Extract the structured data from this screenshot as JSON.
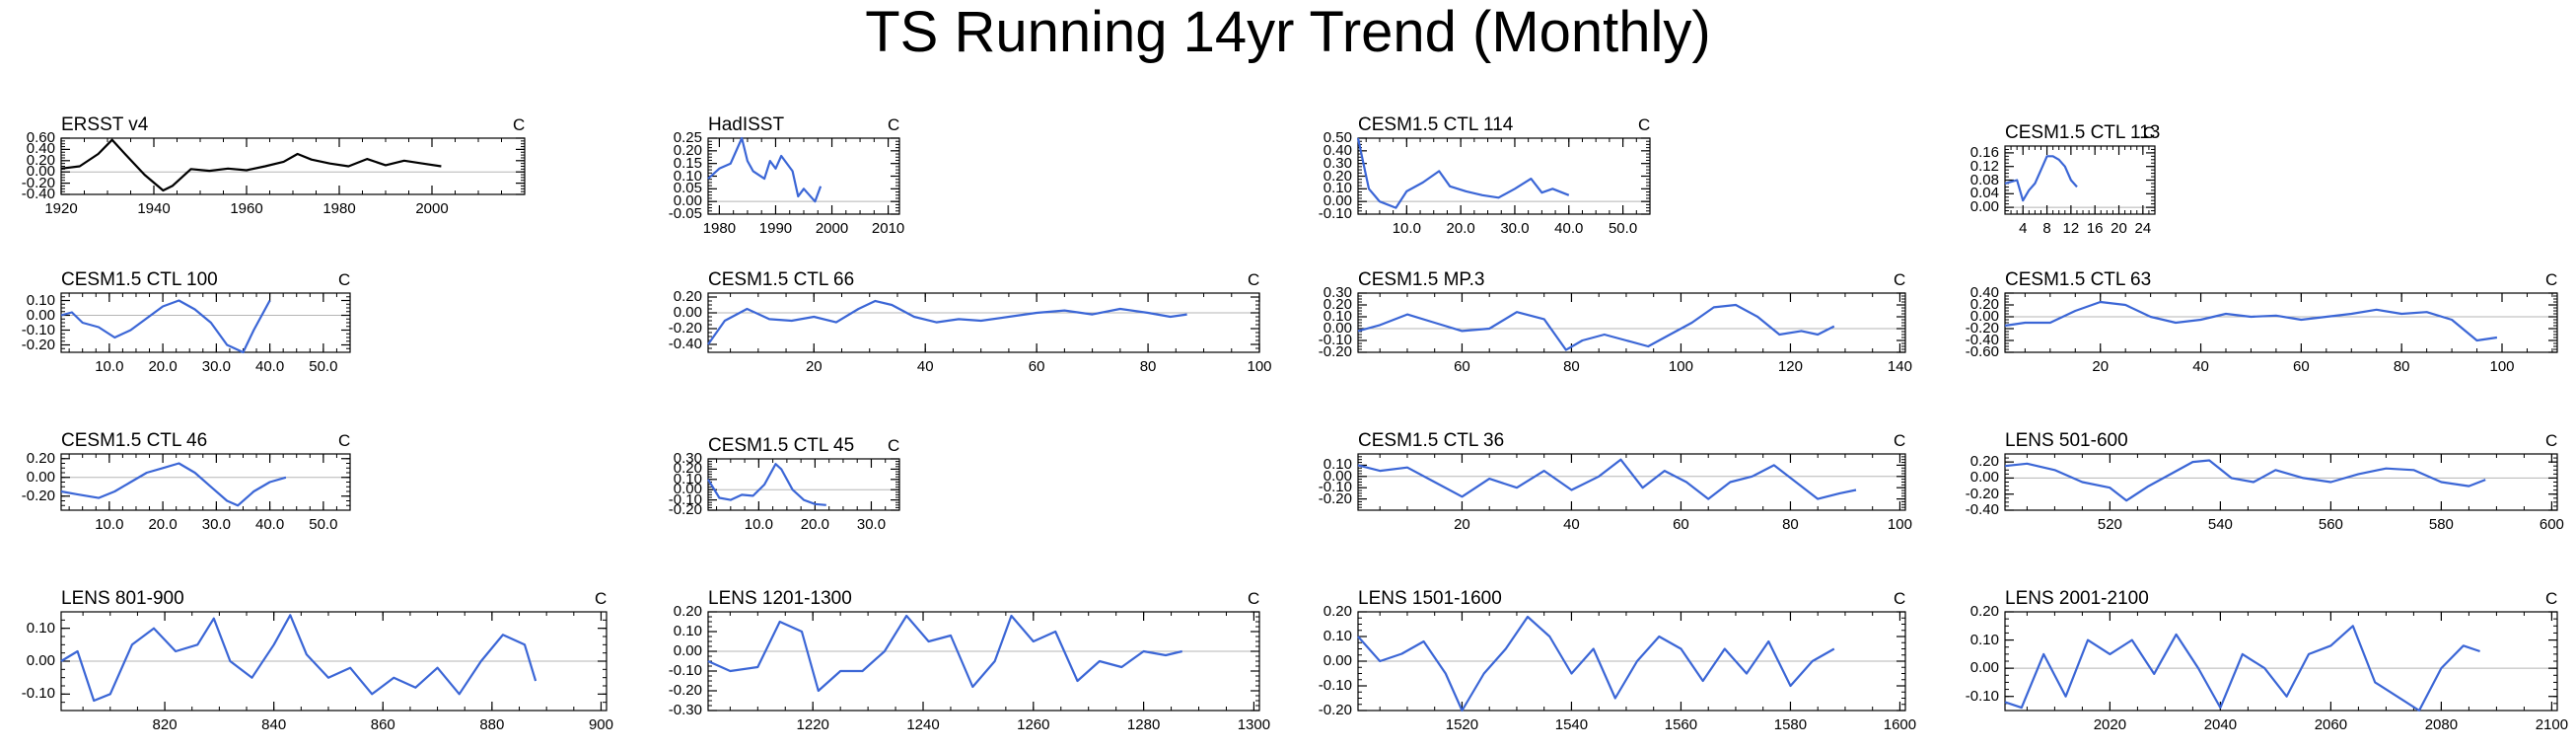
{
  "title": "TS Running 14yr Trend (Monthly)",
  "colors": {
    "obs_line": "#000000",
    "model_line": "#3b66d6",
    "axis": "#000000",
    "zero_line": "#b5b5b5"
  },
  "chart_data": [
    {
      "type": "line",
      "title": "ERSST v4",
      "unit": "C",
      "color": "#000000",
      "x_range": [
        1920,
        2020
      ],
      "ylim": [
        -0.4,
        0.6
      ],
      "xticks": [
        1920,
        1940,
        1960,
        1980,
        2000
      ],
      "xtick_labels": [
        "1920",
        "1940",
        "1960",
        "1980",
        "2000"
      ],
      "yticks": [
        -0.4,
        -0.2,
        0.0,
        0.2,
        0.4,
        0.6
      ],
      "ytick_labels": [
        "-0.40",
        "-0.20",
        "0.00",
        "0.20",
        "0.40",
        "0.60"
      ],
      "x": [
        1920,
        1924,
        1928,
        1931,
        1934,
        1938,
        1942,
        1944,
        1948,
        1952,
        1956,
        1960,
        1964,
        1968,
        1971,
        1974,
        1978,
        1982,
        1986,
        1990,
        1994,
        1998,
        2002
      ],
      "y": [
        0.06,
        0.1,
        0.32,
        0.57,
        0.3,
        -0.05,
        -0.33,
        -0.25,
        0.05,
        0.02,
        0.06,
        0.03,
        0.1,
        0.18,
        0.32,
        0.22,
        0.15,
        0.1,
        0.23,
        0.12,
        0.2,
        0.15,
        0.1
      ]
    },
    {
      "type": "line",
      "title": "HadISST",
      "unit": "C",
      "color": "#3b66d6",
      "x_range": [
        1978,
        2012
      ],
      "ylim": [
        -0.05,
        0.25
      ],
      "xticks": [
        1980,
        1990,
        2000,
        2010
      ],
      "xtick_labels": [
        "1980",
        "1990",
        "2000",
        "2010"
      ],
      "yticks": [
        -0.05,
        0.0,
        0.05,
        0.1,
        0.15,
        0.2,
        0.25
      ],
      "ytick_labels": [
        "-0.05",
        "0.00",
        "0.05",
        "0.10",
        "0.15",
        "0.20",
        "0.25"
      ],
      "x": [
        1978,
        1980,
        1982,
        1984,
        1985,
        1986,
        1988,
        1989,
        1990,
        1991,
        1993,
        1994,
        1995,
        1997,
        1998
      ],
      "y": [
        0.09,
        0.13,
        0.15,
        0.25,
        0.16,
        0.12,
        0.09,
        0.16,
        0.13,
        0.18,
        0.12,
        0.02,
        0.05,
        0.0,
        0.06
      ]
    },
    {
      "type": "line",
      "title": "CESM1.5 CTL 114",
      "unit": "C",
      "color": "#3b66d6",
      "x_range": [
        1,
        55
      ],
      "ylim": [
        -0.1,
        0.5
      ],
      "xticks": [
        10,
        20,
        30,
        40,
        50
      ],
      "xtick_labels": [
        "10.0",
        "20.0",
        "30.0",
        "40.0",
        "50.0"
      ],
      "yticks": [
        -0.1,
        0.0,
        0.1,
        0.2,
        0.3,
        0.4,
        0.5
      ],
      "ytick_labels": [
        "-0.10",
        "0.00",
        "0.10",
        "0.20",
        "0.30",
        "0.40",
        "0.50"
      ],
      "x": [
        1,
        3,
        5,
        8,
        10,
        13,
        16,
        18,
        21,
        24,
        27,
        30,
        33,
        35,
        37,
        40
      ],
      "y": [
        0.5,
        0.1,
        0.0,
        -0.05,
        0.08,
        0.15,
        0.24,
        0.12,
        0.08,
        0.05,
        0.03,
        0.1,
        0.18,
        0.07,
        0.1,
        0.05
      ]
    },
    {
      "type": "line",
      "title": "CESM1.5 CTL 113",
      "unit": "C",
      "color": "#3b66d6",
      "x_range": [
        1,
        26
      ],
      "ylim": [
        -0.02,
        0.18
      ],
      "xticks": [
        4,
        8,
        12,
        16,
        20,
        24
      ],
      "xtick_labels": [
        "4",
        "8",
        "12",
        "16",
        "20",
        "24"
      ],
      "yticks": [
        0.0,
        0.04,
        0.08,
        0.12,
        0.16
      ],
      "ytick_labels": [
        "0.00",
        "0.04",
        "0.08",
        "0.12",
        "0.16"
      ],
      "x": [
        1,
        3,
        4,
        5,
        6,
        7,
        8,
        9,
        10,
        11,
        12,
        13
      ],
      "y": [
        0.07,
        0.08,
        0.02,
        0.05,
        0.07,
        0.11,
        0.15,
        0.15,
        0.14,
        0.12,
        0.08,
        0.06
      ]
    },
    {
      "type": "line",
      "title": "CESM1.5 CTL 100",
      "unit": "C",
      "color": "#3b66d6",
      "x_range": [
        1,
        55
      ],
      "ylim": [
        -0.25,
        0.15
      ],
      "xticks": [
        10,
        20,
        30,
        40,
        50
      ],
      "xtick_labels": [
        "10.0",
        "20.0",
        "30.0",
        "40.0",
        "50.0"
      ],
      "yticks": [
        -0.2,
        -0.1,
        0.0,
        0.1
      ],
      "ytick_labels": [
        "-0.20",
        "-0.10",
        "0.00",
        "0.10"
      ],
      "x": [
        1,
        3,
        5,
        8,
        11,
        14,
        17,
        20,
        23,
        26,
        29,
        32,
        35,
        37,
        40
      ],
      "y": [
        0.0,
        0.02,
        -0.05,
        -0.08,
        -0.15,
        -0.1,
        -0.02,
        0.06,
        0.1,
        0.04,
        -0.05,
        -0.2,
        -0.25,
        -0.1,
        0.1
      ]
    },
    {
      "type": "line",
      "title": "CESM1.5 CTL 66",
      "unit": "C",
      "color": "#3b66d6",
      "x_range": [
        1,
        100
      ],
      "ylim": [
        -0.5,
        0.25
      ],
      "xticks": [
        20,
        40,
        60,
        80,
        100
      ],
      "xtick_labels": [
        "20",
        "40",
        "60",
        "80",
        "100"
      ],
      "yticks": [
        -0.4,
        -0.2,
        0.0,
        0.2
      ],
      "ytick_labels": [
        "-0.40",
        "-0.20",
        "0.00",
        "0.20"
      ],
      "x": [
        1,
        4,
        8,
        12,
        16,
        20,
        24,
        28,
        31,
        34,
        38,
        42,
        46,
        50,
        55,
        60,
        65,
        70,
        75,
        80,
        84,
        87
      ],
      "y": [
        -0.4,
        -0.1,
        0.05,
        -0.08,
        -0.1,
        -0.05,
        -0.12,
        0.05,
        0.15,
        0.1,
        -0.05,
        -0.12,
        -0.08,
        -0.1,
        -0.05,
        0.0,
        0.03,
        -0.02,
        0.05,
        0.0,
        -0.05,
        -0.02
      ]
    },
    {
      "type": "line",
      "title": "CESM1.5 MP.3",
      "unit": "C",
      "color": "#3b66d6",
      "x_range": [
        41,
        141
      ],
      "ylim": [
        -0.2,
        0.3
      ],
      "xticks": [
        60,
        80,
        100,
        120,
        140
      ],
      "xtick_labels": [
        "60",
        "80",
        "100",
        "120",
        "140"
      ],
      "yticks": [
        -0.2,
        -0.1,
        0.0,
        0.1,
        0.2,
        0.3
      ],
      "ytick_labels": [
        "-0.20",
        "-0.10",
        "0.00",
        "0.10",
        "0.20",
        "0.30"
      ],
      "x": [
        41,
        45,
        50,
        55,
        60,
        65,
        70,
        75,
        79,
        82,
        86,
        90,
        94,
        98,
        102,
        106,
        110,
        114,
        118,
        122,
        125,
        128
      ],
      "y": [
        -0.02,
        0.03,
        0.12,
        0.05,
        -0.02,
        0.0,
        0.14,
        0.08,
        -0.18,
        -0.1,
        -0.05,
        -0.1,
        -0.15,
        -0.05,
        0.05,
        0.18,
        0.2,
        0.1,
        -0.05,
        -0.02,
        -0.05,
        0.02
      ]
    },
    {
      "type": "line",
      "title": "CESM1.5 CTL 63",
      "unit": "C",
      "color": "#3b66d6",
      "x_range": [
        1,
        111
      ],
      "ylim": [
        -0.6,
        0.4
      ],
      "xticks": [
        20,
        40,
        60,
        80,
        100
      ],
      "xtick_labels": [
        "20",
        "40",
        "60",
        "80",
        "100"
      ],
      "yticks": [
        -0.6,
        -0.4,
        -0.2,
        0.0,
        0.2,
        0.4
      ],
      "ytick_labels": [
        "-0.60",
        "-0.40",
        "-0.20",
        "0.00",
        "0.20",
        "0.40"
      ],
      "x": [
        1,
        5,
        10,
        15,
        20,
        25,
        30,
        35,
        40,
        45,
        50,
        55,
        60,
        65,
        70,
        75,
        80,
        85,
        90,
        95,
        99
      ],
      "y": [
        -0.15,
        -0.1,
        -0.1,
        0.1,
        0.25,
        0.2,
        0.0,
        -0.1,
        -0.05,
        0.05,
        0.0,
        0.02,
        -0.05,
        0.0,
        0.05,
        0.12,
        0.05,
        0.08,
        -0.05,
        -0.4,
        -0.35
      ]
    },
    {
      "type": "line",
      "title": "CESM1.5 CTL 46",
      "unit": "C",
      "color": "#3b66d6",
      "x_range": [
        1,
        55
      ],
      "ylim": [
        -0.35,
        0.25
      ],
      "xticks": [
        10,
        20,
        30,
        40,
        50
      ],
      "xtick_labels": [
        "10.0",
        "20.0",
        "30.0",
        "40.0",
        "50.0"
      ],
      "yticks": [
        -0.2,
        0.0,
        0.2
      ],
      "ytick_labels": [
        "-0.20",
        "0.00",
        "0.20"
      ],
      "x": [
        1,
        4,
        8,
        11,
        14,
        17,
        20,
        23,
        26,
        29,
        32,
        34,
        37,
        40,
        43
      ],
      "y": [
        -0.15,
        -0.18,
        -0.22,
        -0.15,
        -0.05,
        0.05,
        0.1,
        0.15,
        0.05,
        -0.1,
        -0.25,
        -0.3,
        -0.15,
        -0.05,
        0.0
      ]
    },
    {
      "type": "line",
      "title": "CESM1.5 CTL 45",
      "unit": "C",
      "color": "#3b66d6",
      "x_range": [
        1,
        35
      ],
      "ylim": [
        -0.2,
        0.3
      ],
      "xticks": [
        10,
        20,
        30
      ],
      "xtick_labels": [
        "10.0",
        "20.0",
        "30.0"
      ],
      "yticks": [
        -0.2,
        -0.1,
        0.0,
        0.1,
        0.2,
        0.3
      ],
      "ytick_labels": [
        "-0.20",
        "-0.10",
        "0.00",
        "0.10",
        "0.20",
        "0.30"
      ],
      "x": [
        1,
        3,
        5,
        7,
        9,
        11,
        13,
        14,
        16,
        18,
        20,
        22
      ],
      "y": [
        0.1,
        -0.08,
        -0.1,
        -0.05,
        -0.06,
        0.05,
        0.25,
        0.2,
        0.0,
        -0.1,
        -0.14,
        -0.15
      ]
    },
    {
      "type": "line",
      "title": "CESM1.5 CTL 36",
      "unit": "C",
      "color": "#3b66d6",
      "x_range": [
        1,
        101
      ],
      "ylim": [
        -0.3,
        0.2
      ],
      "xticks": [
        20,
        40,
        60,
        80,
        100
      ],
      "xtick_labels": [
        "20",
        "40",
        "60",
        "80",
        "100"
      ],
      "yticks": [
        -0.2,
        -0.1,
        0.0,
        0.1
      ],
      "ytick_labels": [
        "-0.20",
        "-0.10",
        "0.00",
        "0.10"
      ],
      "x": [
        1,
        5,
        10,
        15,
        20,
        25,
        30,
        35,
        40,
        45,
        49,
        53,
        57,
        61,
        65,
        69,
        73,
        77,
        81,
        85,
        89,
        92
      ],
      "y": [
        0.1,
        0.05,
        0.08,
        -0.05,
        -0.18,
        -0.02,
        -0.1,
        0.05,
        -0.12,
        0.0,
        0.15,
        -0.1,
        0.05,
        -0.05,
        -0.2,
        -0.05,
        0.0,
        0.1,
        -0.05,
        -0.2,
        -0.15,
        -0.12
      ]
    },
    {
      "type": "line",
      "title": "LENS 501-600",
      "unit": "C",
      "color": "#3b66d6",
      "x_range": [
        501,
        601
      ],
      "ylim": [
        -0.4,
        0.3
      ],
      "xticks": [
        520,
        540,
        560,
        580,
        600
      ],
      "xtick_labels": [
        "520",
        "540",
        "560",
        "580",
        "600"
      ],
      "yticks": [
        -0.4,
        -0.2,
        0.0,
        0.2
      ],
      "ytick_labels": [
        "-0.40",
        "-0.20",
        "0.00",
        "0.20"
      ],
      "x": [
        501,
        505,
        510,
        515,
        520,
        523,
        527,
        531,
        535,
        538,
        542,
        546,
        550,
        555,
        560,
        565,
        570,
        575,
        580,
        585,
        588
      ],
      "y": [
        0.15,
        0.18,
        0.1,
        -0.05,
        -0.12,
        -0.28,
        -0.1,
        0.05,
        0.2,
        0.22,
        0.0,
        -0.05,
        0.1,
        0.0,
        -0.05,
        0.05,
        0.12,
        0.1,
        -0.05,
        -0.1,
        -0.02
      ]
    },
    {
      "type": "line",
      "title": "LENS 801-900",
      "unit": "C",
      "color": "#3b66d6",
      "x_range": [
        801,
        901
      ],
      "ylim": [
        -0.15,
        0.15
      ],
      "xticks": [
        820,
        840,
        860,
        880,
        900
      ],
      "xtick_labels": [
        "820",
        "840",
        "860",
        "880",
        "900"
      ],
      "yticks": [
        -0.1,
        0.0,
        0.1
      ],
      "ytick_labels": [
        "-0.10",
        "0.00",
        "0.10"
      ],
      "x": [
        801,
        804,
        807,
        810,
        814,
        818,
        822,
        826,
        829,
        832,
        836,
        840,
        843,
        846,
        850,
        854,
        858,
        862,
        866,
        870,
        874,
        878,
        882,
        886,
        888
      ],
      "y": [
        0.0,
        0.03,
        -0.12,
        -0.1,
        0.05,
        0.1,
        0.03,
        0.05,
        0.13,
        0.0,
        -0.05,
        0.05,
        0.14,
        0.02,
        -0.05,
        -0.02,
        -0.1,
        -0.05,
        -0.08,
        -0.02,
        -0.1,
        0.0,
        0.08,
        0.05,
        -0.06
      ]
    },
    {
      "type": "line",
      "title": "LENS 1201-1300",
      "unit": "C",
      "color": "#3b66d6",
      "x_range": [
        1201,
        1301
      ],
      "ylim": [
        -0.3,
        0.2
      ],
      "xticks": [
        1220,
        1240,
        1260,
        1280,
        1300
      ],
      "xtick_labels": [
        "1220",
        "1240",
        "1260",
        "1280",
        "1300"
      ],
      "yticks": [
        -0.3,
        -0.2,
        -0.1,
        0.0,
        0.1,
        0.2
      ],
      "ytick_labels": [
        "-0.30",
        "-0.20",
        "-0.10",
        "0.00",
        "0.10",
        "0.20"
      ],
      "x": [
        1201,
        1205,
        1210,
        1214,
        1218,
        1221,
        1225,
        1229,
        1233,
        1237,
        1241,
        1245,
        1249,
        1253,
        1256,
        1260,
        1264,
        1268,
        1272,
        1276,
        1280,
        1284,
        1287
      ],
      "y": [
        -0.05,
        -0.1,
        -0.08,
        0.15,
        0.1,
        -0.2,
        -0.1,
        -0.1,
        0.0,
        0.18,
        0.05,
        0.08,
        -0.18,
        -0.05,
        0.18,
        0.05,
        0.1,
        -0.15,
        -0.05,
        -0.08,
        0.0,
        -0.02,
        0.0
      ]
    },
    {
      "type": "line",
      "title": "LENS 1501-1600",
      "unit": "C",
      "color": "#3b66d6",
      "x_range": [
        1501,
        1601
      ],
      "ylim": [
        -0.2,
        0.2
      ],
      "xticks": [
        1520,
        1540,
        1560,
        1580,
        1600
      ],
      "xtick_labels": [
        "1520",
        "1540",
        "1560",
        "1580",
        "1600"
      ],
      "yticks": [
        -0.2,
        -0.1,
        0.0,
        0.1,
        0.2
      ],
      "ytick_labels": [
        "-0.20",
        "-0.10",
        "0.00",
        "0.10",
        "0.20"
      ],
      "x": [
        1501,
        1505,
        1509,
        1513,
        1517,
        1520,
        1524,
        1528,
        1532,
        1536,
        1540,
        1544,
        1548,
        1552,
        1556,
        1560,
        1564,
        1568,
        1572,
        1576,
        1580,
        1584,
        1588
      ],
      "y": [
        0.1,
        0.0,
        0.03,
        0.08,
        -0.05,
        -0.2,
        -0.05,
        0.05,
        0.18,
        0.1,
        -0.05,
        0.05,
        -0.15,
        0.0,
        0.1,
        0.05,
        -0.08,
        0.05,
        -0.05,
        0.08,
        -0.1,
        0.0,
        0.05
      ]
    },
    {
      "type": "line",
      "title": "LENS 2001-2100",
      "unit": "C",
      "color": "#3b66d6",
      "x_range": [
        2001,
        2101
      ],
      "ylim": [
        -0.15,
        0.2
      ],
      "xticks": [
        2020,
        2040,
        2060,
        2080,
        2100
      ],
      "xtick_labels": [
        "2020",
        "2040",
        "2060",
        "2080",
        "2100"
      ],
      "yticks": [
        -0.1,
        0.0,
        0.1,
        0.2
      ],
      "ytick_labels": [
        "-0.10",
        "0.00",
        "0.10",
        "0.20"
      ],
      "x": [
        2001,
        2004,
        2008,
        2012,
        2016,
        2020,
        2024,
        2028,
        2032,
        2036,
        2040,
        2044,
        2048,
        2052,
        2056,
        2060,
        2064,
        2068,
        2072,
        2076,
        2080,
        2084,
        2087
      ],
      "y": [
        -0.12,
        -0.14,
        0.05,
        -0.1,
        0.1,
        0.05,
        0.1,
        -0.02,
        0.12,
        0.0,
        -0.14,
        0.05,
        0.0,
        -0.1,
        0.05,
        0.08,
        0.15,
        -0.05,
        -0.1,
        -0.15,
        0.0,
        0.08,
        0.06
      ]
    }
  ]
}
